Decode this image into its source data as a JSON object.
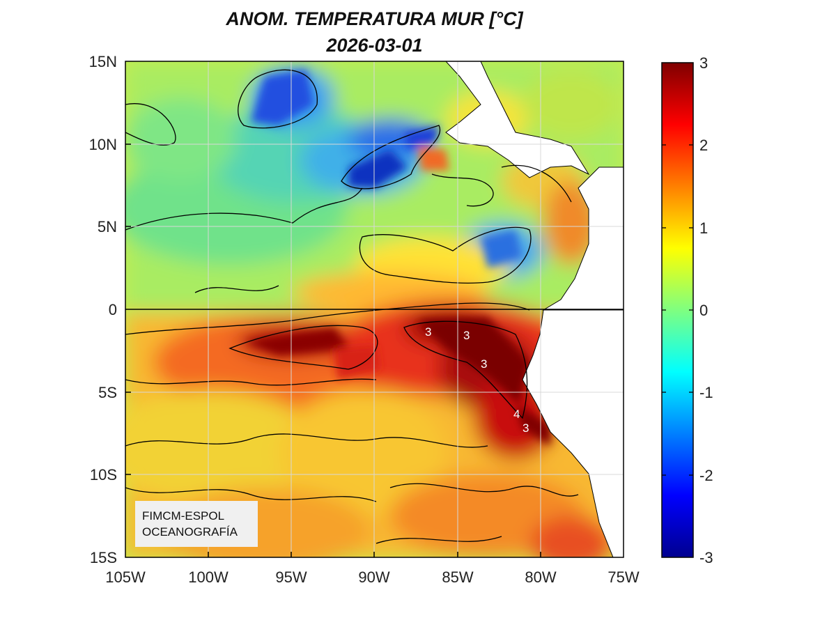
{
  "title": "ANOM. TEMPERATURA MUR [°C]",
  "date": "2026-03-01",
  "map": {
    "lat_ticks": [
      "15N",
      "10N",
      "5N",
      "0",
      "5S",
      "10S",
      "15S"
    ],
    "lon_ticks": [
      "105W",
      "100W",
      "95W",
      "90W",
      "85W",
      "80W",
      "75W"
    ],
    "lat_range": [
      -15,
      15
    ],
    "lon_range": [
      -105,
      -75
    ],
    "equator_line": true,
    "grid": true,
    "contour_labels": [
      "3",
      "3",
      "3",
      "4",
      "3"
    ]
  },
  "colorbar": {
    "ticks": [
      "3",
      "2",
      "1",
      "0",
      "-1",
      "-2",
      "-3"
    ],
    "range": [
      -3,
      3
    ],
    "colormap": "jet"
  },
  "credit": {
    "line1": "FIMCM-ESPOL",
    "line2": "OCEANOGRAFÍA"
  },
  "colors": {
    "land": "#ffffff",
    "equator": "#000000",
    "contour": "#000000"
  }
}
